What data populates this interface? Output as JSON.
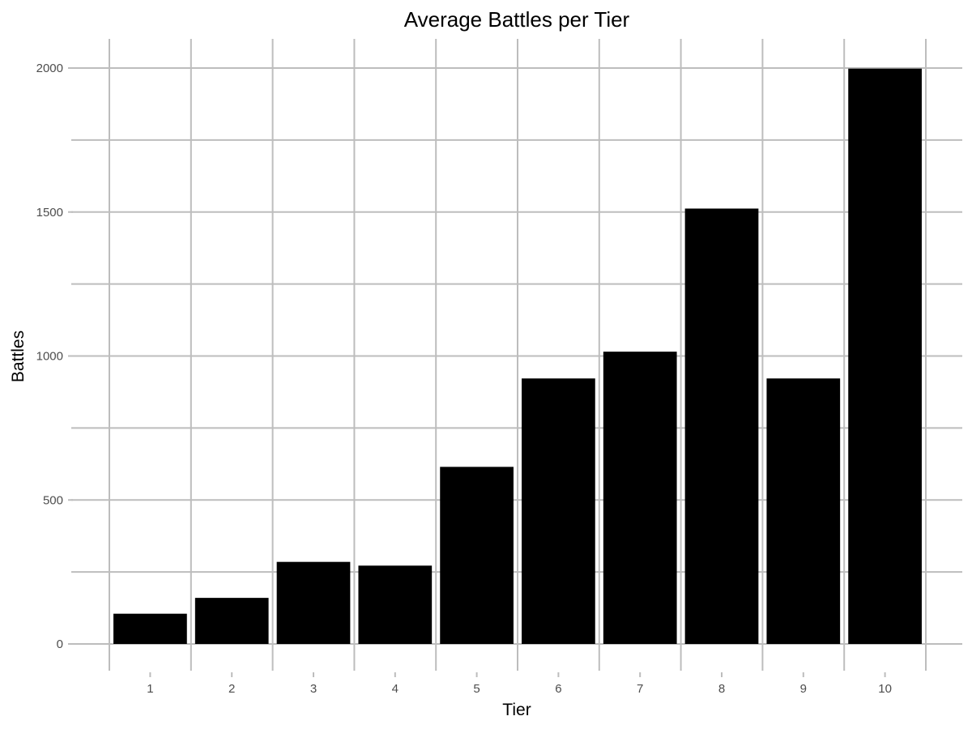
{
  "chart_data": {
    "type": "bar",
    "title": "Average Battles per Tier",
    "xlabel": "Tier",
    "ylabel": "Battles",
    "categories": [
      "1",
      "2",
      "3",
      "4",
      "5",
      "6",
      "7",
      "8",
      "9",
      "10"
    ],
    "values": [
      105,
      160,
      285,
      272,
      615,
      922,
      1015,
      1512,
      922,
      1998
    ],
    "ylim": [
      0,
      2000
    ],
    "yticks": [
      0,
      500,
      1000,
      1500,
      2000
    ],
    "ytick_labels": [
      "0",
      "500",
      "1000",
      "1500",
      "2000"
    ],
    "grid": true,
    "legend": "none",
    "bar_color": "#000000",
    "grid_color": "#bdbdbd",
    "background_color": "#ffffff"
  }
}
